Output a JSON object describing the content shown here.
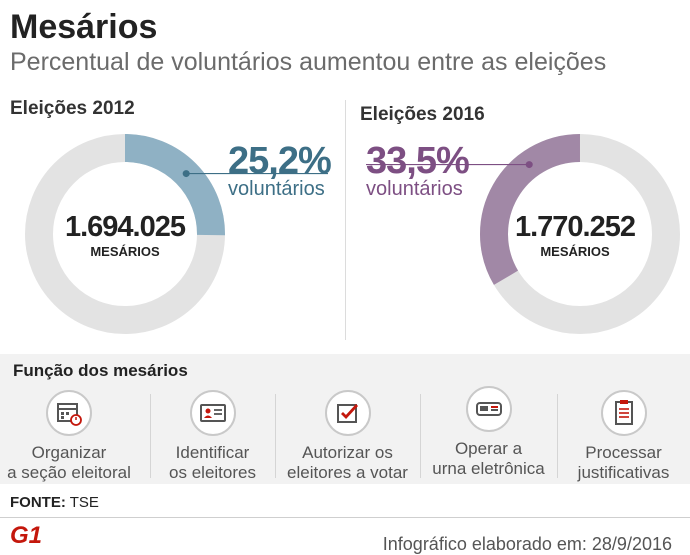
{
  "header": {
    "title": "Mesários",
    "subtitle": "Percentual de voluntários aumentou entre as eleições"
  },
  "chart_data": [
    {
      "type": "pie",
      "title": "Eleições 2012",
      "percent_voluntarios": 25.2,
      "percent_label": "25,2%",
      "percent_caption": "voluntários",
      "total": 1694025,
      "total_label": "1.694.025",
      "total_caption": "MESÁRIOS",
      "color": "#8fb1c4"
    },
    {
      "type": "pie",
      "title": "Eleições 2016",
      "percent_voluntarios": 33.5,
      "percent_label": "33,5%",
      "percent_caption": "voluntários",
      "total": 1770252,
      "total_label": "1.770.252",
      "total_caption": "MESÁRIOS",
      "color": "#a188a6"
    }
  ],
  "colors": {
    "ring_bg": "#e3e3e3",
    "pct_2012": "#3d6f86",
    "pct_2016": "#7d4f83"
  },
  "functions": {
    "title": "Função dos mesários",
    "items": [
      {
        "line1": "Organizar",
        "line2": "a seção eleitoral",
        "icon": "calendar-icon"
      },
      {
        "line1": "Identificar",
        "line2": "os eleitores",
        "icon": "id-card-icon"
      },
      {
        "line1": "Autorizar os",
        "line2": "eleitores a votar",
        "icon": "checkbox-icon"
      },
      {
        "line1": "Operar a",
        "line2": "urna eletrônica",
        "icon": "voting-machine-icon"
      },
      {
        "line1": "Processar",
        "line2": "justificativas",
        "icon": "document-list-icon"
      }
    ]
  },
  "footer": {
    "source_label": "FONTE:",
    "source_value": "TSE",
    "logo": "G1",
    "credit": "Infográfico elaborado em: 28/9/2016"
  }
}
